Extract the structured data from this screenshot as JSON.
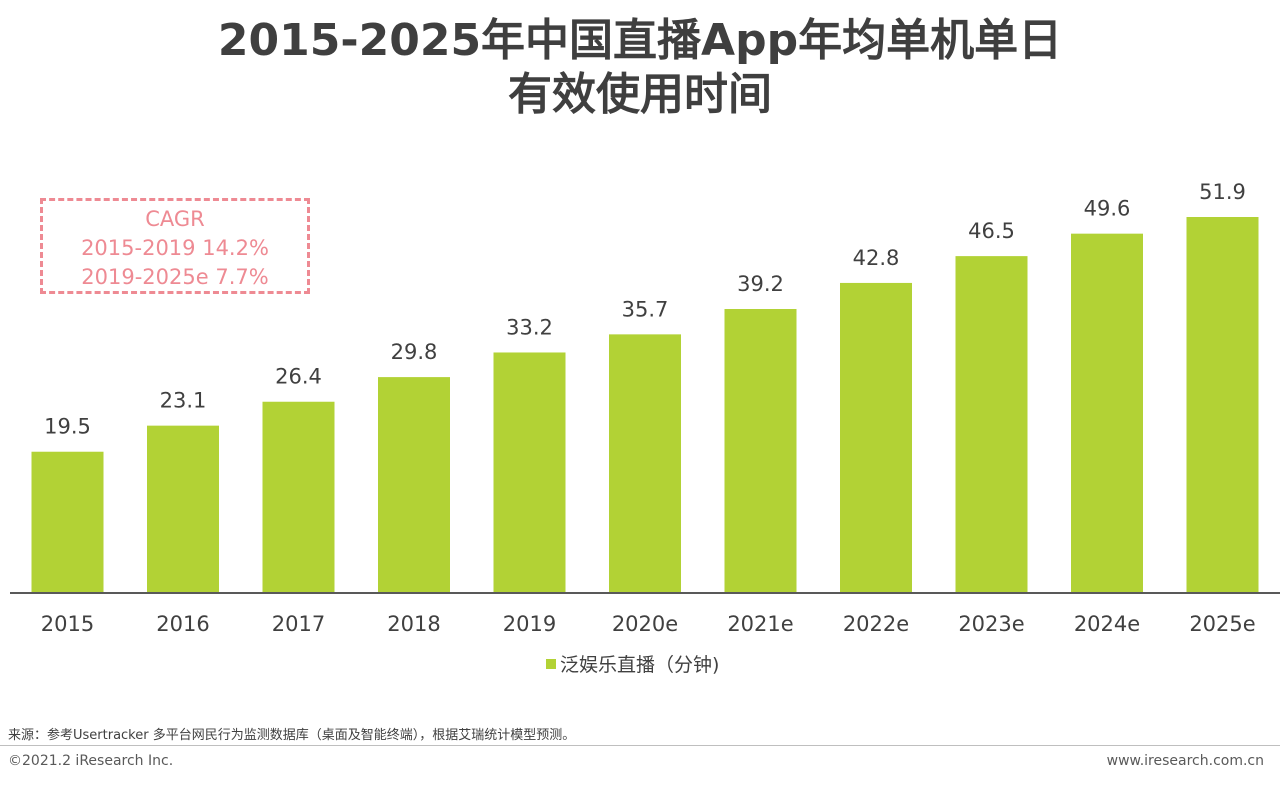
{
  "title": {
    "line1": "2015-2025年中国直播App年均单机单日",
    "line2": "有效使用时间"
  },
  "cagr": {
    "label": "CAGR",
    "line1": "2015-2019 14.2%",
    "line2": "2019-2025e 7.7%",
    "color": "#ee8a93"
  },
  "chart_data": {
    "type": "bar",
    "categories": [
      "2015",
      "2016",
      "2017",
      "2018",
      "2019",
      "2020e",
      "2021e",
      "2022e",
      "2023e",
      "2024e",
      "2025e"
    ],
    "series": [
      {
        "name": "泛娱乐直播（分钟)",
        "values": [
          19.5,
          23.1,
          26.4,
          29.8,
          33.2,
          35.7,
          39.2,
          42.8,
          46.5,
          49.6,
          51.9
        ],
        "color": "#b2d235"
      }
    ],
    "ylim": [
      0,
      55
    ],
    "grid": false,
    "legend_position": "bottom"
  },
  "legend": {
    "label": "泛娱乐直播（分钟)"
  },
  "footer": {
    "source": "来源：参考Usertracker 多平台网民行为监测数据库（桌面及智能终端），根据艾瑞统计模型预测。",
    "copyright": "©2021.2 iResearch Inc.",
    "website": "www.iresearch.com.cn"
  }
}
